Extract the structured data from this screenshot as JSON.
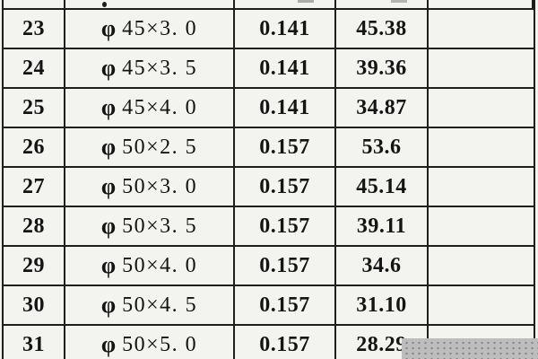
{
  "colors": {
    "background": "#f2f2ef",
    "border": "#1e1e1e",
    "text": "#141414",
    "watermark_base": "#bdbdbd",
    "watermark_dot": "#878787"
  },
  "table": {
    "phi": "φ",
    "rows": [
      {
        "no": "23",
        "size": "45×3. 0",
        "v1": "0.141",
        "v2": "45.38",
        "v3": ""
      },
      {
        "no": "24",
        "size": "45×3. 5",
        "v1": "0.141",
        "v2": "39.36",
        "v3": ""
      },
      {
        "no": "25",
        "size": "45×4. 0",
        "v1": "0.141",
        "v2": "34.87",
        "v3": ""
      },
      {
        "no": "26",
        "size": "50×2. 5",
        "v1": "0.157",
        "v2": "53.6",
        "v3": ""
      },
      {
        "no": "27",
        "size": "50×3. 0",
        "v1": "0.157",
        "v2": "45.14",
        "v3": ""
      },
      {
        "no": "28",
        "size": "50×3. 5",
        "v1": "0.157",
        "v2": "39.11",
        "v3": ""
      },
      {
        "no": "29",
        "size": "50×4. 0",
        "v1": "0.157",
        "v2": "34.6",
        "v3": ""
      },
      {
        "no": "30",
        "size": "50×4. 5",
        "v1": "0.157",
        "v2": "31.10",
        "v3": ""
      },
      {
        "no": "31",
        "size": "50×5. 0",
        "v1": "0.157",
        "v2": "28.29",
        "v3": ""
      }
    ]
  }
}
